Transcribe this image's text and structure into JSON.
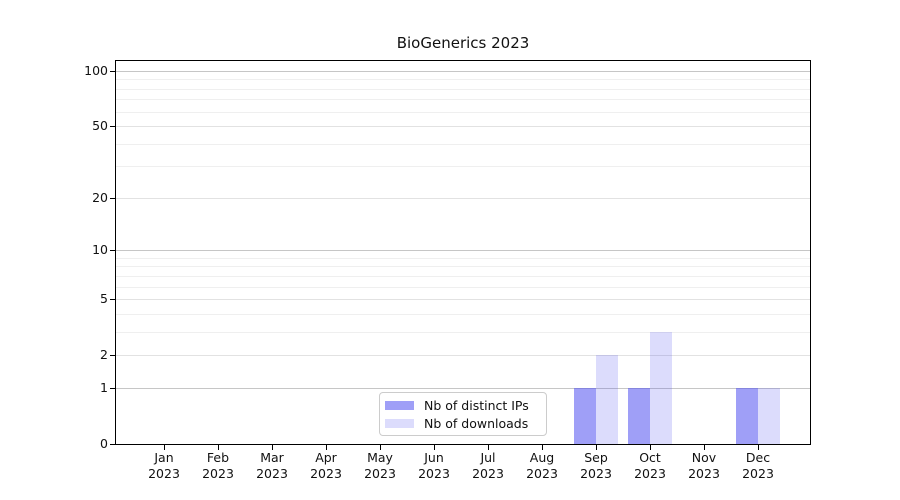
{
  "title": "BioGenerics 2023",
  "chart_data": {
    "type": "bar",
    "title": "BioGenerics 2023",
    "categories": [
      "Jan 2023",
      "Feb 2023",
      "Mar 2023",
      "Apr 2023",
      "May 2023",
      "Jun 2023",
      "Jul 2023",
      "Aug 2023",
      "Sep 2023",
      "Oct 2023",
      "Nov 2023",
      "Dec 2023"
    ],
    "series": [
      {
        "name": "Nb of distinct IPs",
        "color": "rgba(80,80,240,0.55)",
        "values": [
          0,
          0,
          0,
          0,
          0,
          0,
          0,
          0,
          1,
          1,
          0,
          1
        ]
      },
      {
        "name": "Nb of downloads",
        "color": "rgba(80,80,240,0.20)",
        "values": [
          0,
          0,
          0,
          0,
          0,
          0,
          0,
          0,
          2,
          3,
          0,
          1
        ]
      }
    ],
    "yscale": "log1p",
    "y_ticks": [
      0,
      1,
      2,
      5,
      10,
      20,
      50,
      100
    ],
    "y_minor_ticks": [
      3,
      4,
      6,
      7,
      8,
      9,
      30,
      40,
      60,
      70,
      80,
      90
    ],
    "ylim": [
      0,
      113
    ],
    "xlabel": "",
    "ylabel": "",
    "grid": true,
    "legend_position": "lower-center-inside-axes"
  },
  "colors": {
    "background": "#ffffff",
    "spine": "#000000",
    "grid_decade": "#c6c6c6",
    "grid_major": "#e2e2e2",
    "grid_minor": "#efefef",
    "text": "#111111",
    "legend_border": "#cccccc"
  }
}
